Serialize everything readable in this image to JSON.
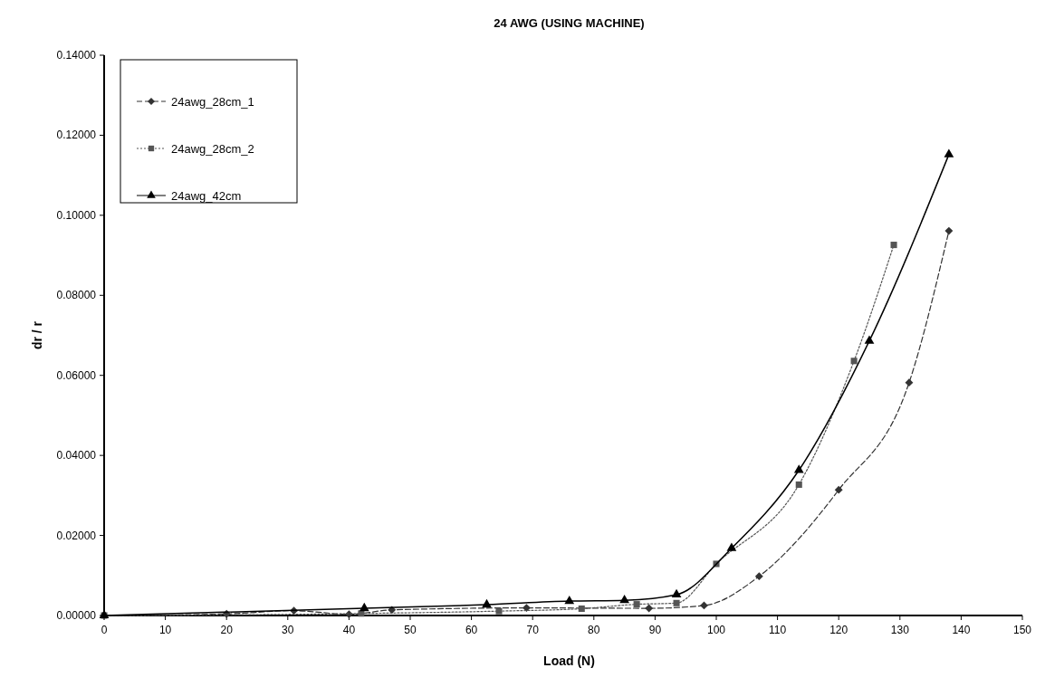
{
  "chart_data": {
    "type": "line",
    "title": "24 AWG  (USING MACHINE)",
    "xlabel": "Load (N)",
    "ylabel": "dr / r",
    "xlim": [
      0,
      150
    ],
    "xticks": [
      0,
      10,
      20,
      30,
      40,
      50,
      60,
      70,
      80,
      90,
      100,
      110,
      120,
      130,
      140,
      150
    ],
    "ylim": [
      0,
      0.14
    ],
    "yticks": [
      {
        "value": 0,
        "label": "0.00000"
      },
      {
        "value": 0.02,
        "label": "0.02000"
      },
      {
        "value": 0.04,
        "label": "0.04000"
      },
      {
        "value": 0.06,
        "label": "0.06000"
      },
      {
        "value": 0.08,
        "label": "0.08000"
      },
      {
        "value": 0.1,
        "label": "0.10000"
      },
      {
        "value": 0.12,
        "label": "0.12000"
      },
      {
        "value": 0.14,
        "label": "0.14000"
      }
    ],
    "grid": false,
    "legend": "top left",
    "series": [
      {
        "name": "24awg_28cm_1",
        "color": "#333333",
        "marker": "diamond",
        "line_style": "dashed",
        "x": [
          0,
          20,
          31,
          40,
          47,
          69,
          89,
          98,
          107,
          120,
          131.5,
          138
        ],
        "values": [
          0,
          0.0004,
          0.0012,
          0.0003,
          0.0014,
          0.0019,
          0.0018,
          0.0025,
          0.0098,
          0.0314,
          0.0582,
          0.0961
        ]
      },
      {
        "name": "24awg_28cm_2",
        "color": "#555555",
        "marker": "square",
        "line_style": "dotted",
        "x": [
          0,
          42,
          64.5,
          78,
          87,
          93.5,
          100,
          113.5,
          122.5,
          129
        ],
        "values": [
          0,
          0.0005,
          0.0011,
          0.0017,
          0.0028,
          0.0031,
          0.0129,
          0.0327,
          0.0636,
          0.0926
        ]
      },
      {
        "name": "24awg_42cm",
        "color": "#000000",
        "marker": "triangle",
        "line_style": "solid",
        "x": [
          0,
          42.5,
          62.5,
          76,
          85,
          93.5,
          102.5,
          113.5,
          125,
          138
        ],
        "values": [
          0,
          0.0018,
          0.0027,
          0.0036,
          0.0038,
          0.0052,
          0.0168,
          0.0363,
          0.0686,
          0.1152
        ]
      }
    ]
  }
}
